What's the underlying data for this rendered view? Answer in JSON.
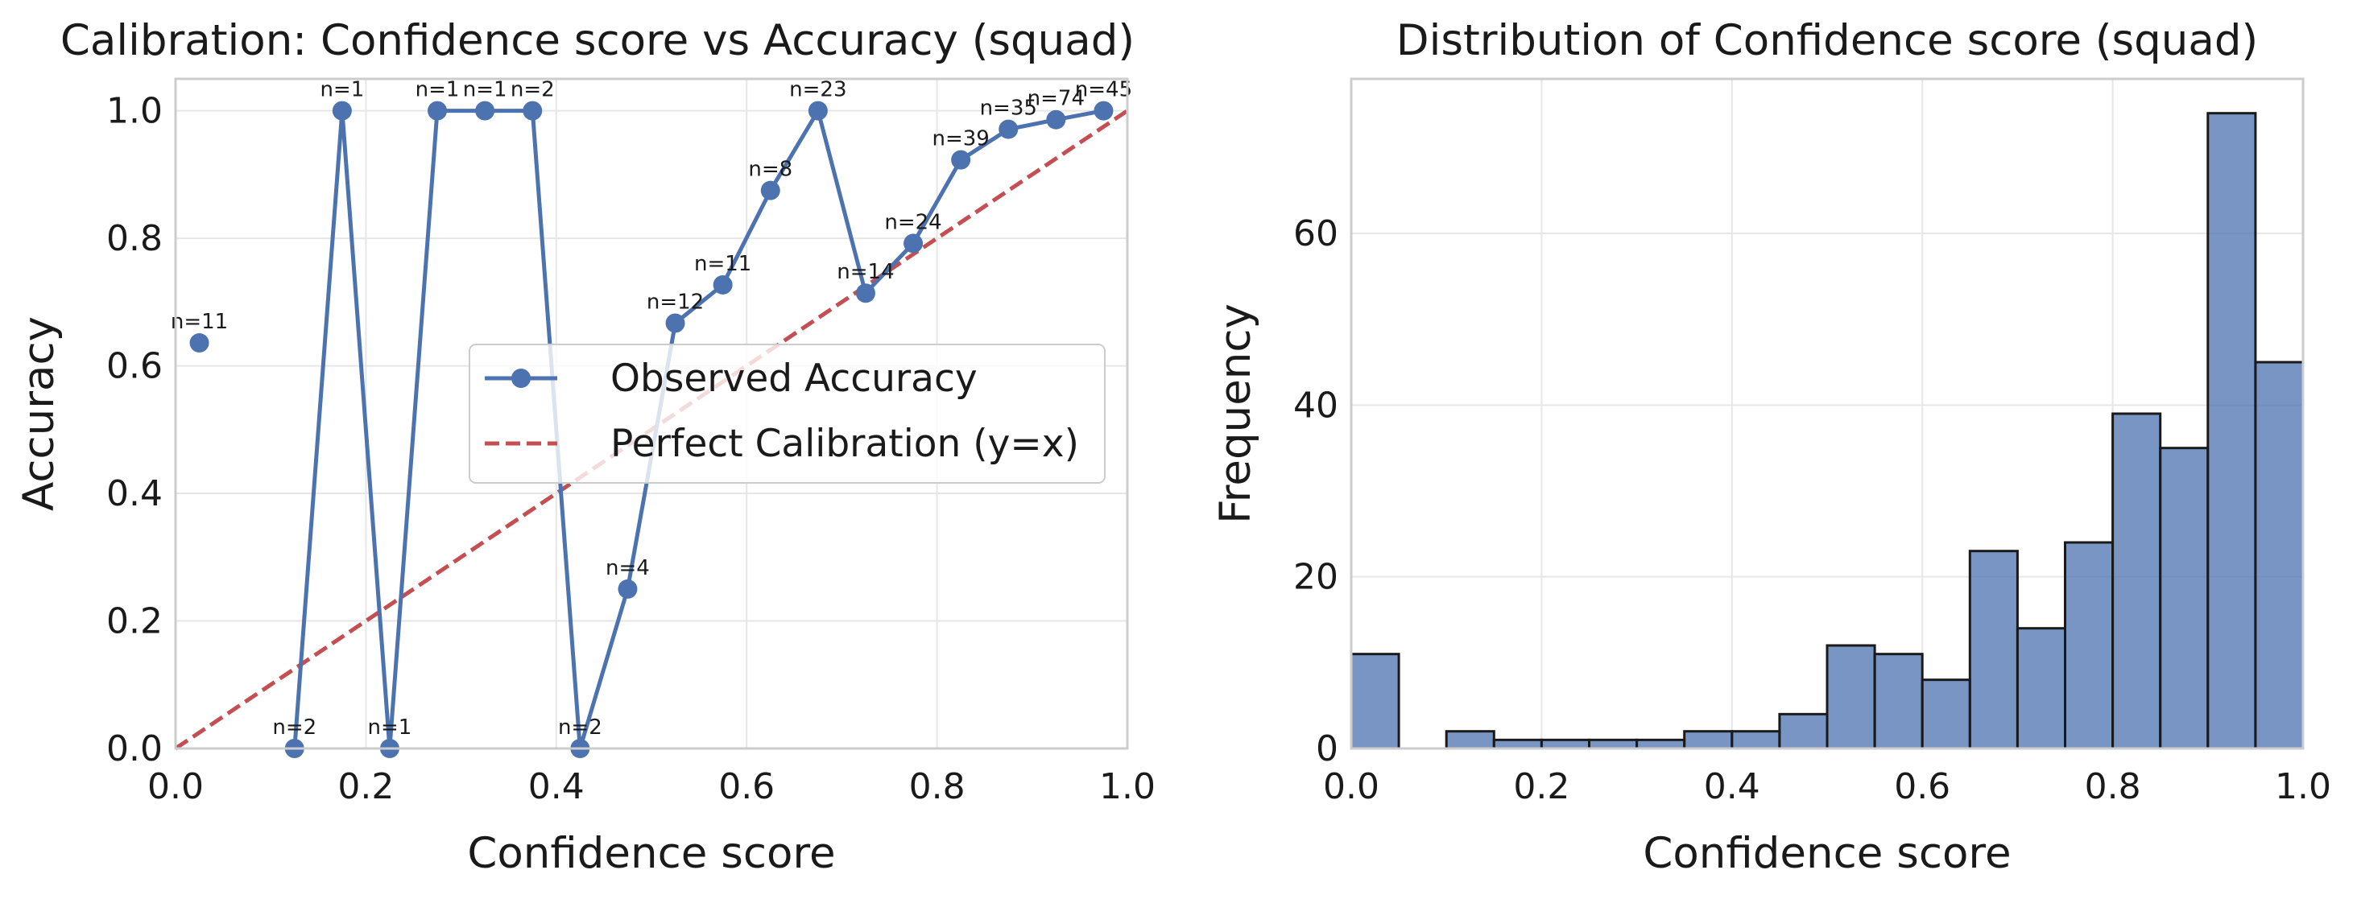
{
  "chart_data": [
    {
      "type": "line",
      "title": "Calibration: Confidence score vs Accuracy (squad)",
      "xlabel": "Confidence score",
      "ylabel": "Accuracy",
      "xlim": [
        0,
        1
      ],
      "ylim": [
        0,
        1.05
      ],
      "xticks": [
        0.0,
        0.2,
        0.4,
        0.6,
        0.8,
        1.0
      ],
      "xtick_labels": [
        "0.0",
        "0.2",
        "0.4",
        "0.6",
        "0.8",
        "1.0"
      ],
      "yticks": [
        0.0,
        0.2,
        0.4,
        0.6,
        0.8,
        1.0
      ],
      "ytick_labels": [
        "0.0",
        "0.2",
        "0.4",
        "0.6",
        "0.8",
        "1.0"
      ],
      "grid": true,
      "legend_position": "center-right",
      "series": [
        {
          "name": "Observed Accuracy",
          "color": "#4c72b0",
          "style": "solid-with-markers",
          "points": [
            {
              "x": 0.025,
              "y": 0.636,
              "label": "n=11"
            },
            {
              "x": 0.125,
              "y": 0.0,
              "label": "n=2"
            },
            {
              "x": 0.175,
              "y": 1.0,
              "label": "n=1"
            },
            {
              "x": 0.225,
              "y": 0.0,
              "label": "n=1"
            },
            {
              "x": 0.275,
              "y": 1.0,
              "label": "n=1"
            },
            {
              "x": 0.325,
              "y": 1.0,
              "label": "n=1"
            },
            {
              "x": 0.375,
              "y": 1.0,
              "label": "n=2"
            },
            {
              "x": 0.425,
              "y": 0.0,
              "label": "n=2"
            },
            {
              "x": 0.475,
              "y": 0.25,
              "label": "n=4"
            },
            {
              "x": 0.525,
              "y": 0.667,
              "label": "n=12"
            },
            {
              "x": 0.575,
              "y": 0.727,
              "label": "n=11"
            },
            {
              "x": 0.625,
              "y": 0.875,
              "label": "n=8"
            },
            {
              "x": 0.675,
              "y": 1.0,
              "label": "n=23"
            },
            {
              "x": 0.725,
              "y": 0.714,
              "label": "n=14"
            },
            {
              "x": 0.775,
              "y": 0.792,
              "label": "n=24"
            },
            {
              "x": 0.825,
              "y": 0.923,
              "label": "n=39"
            },
            {
              "x": 0.875,
              "y": 0.971,
              "label": "n=35"
            },
            {
              "x": 0.925,
              "y": 0.986,
              "label": "n=74"
            },
            {
              "x": 0.975,
              "y": 1.0,
              "label": "n=45"
            }
          ]
        },
        {
          "name": "Perfect Calibration (y=x)",
          "color": "#c44e52",
          "style": "dashed",
          "points": [
            {
              "x": 0,
              "y": 0
            },
            {
              "x": 1,
              "y": 1
            }
          ]
        }
      ]
    },
    {
      "type": "bar",
      "title": "Distribution of Confidence score (squad)",
      "xlabel": "Confidence score",
      "ylabel": "Frequency",
      "xlim": [
        0,
        1
      ],
      "ylim": [
        0,
        78
      ],
      "xticks": [
        0.0,
        0.2,
        0.4,
        0.6,
        0.8,
        1.0
      ],
      "xtick_labels": [
        "0.0",
        "0.2",
        "0.4",
        "0.6",
        "0.8",
        "1.0"
      ],
      "yticks": [
        0,
        20,
        40,
        60
      ],
      "ytick_labels": [
        "0",
        "20",
        "40",
        "60"
      ],
      "grid": true,
      "color": "#4c72b0",
      "bin_width": 0.05,
      "bins": [
        {
          "start": 0.0,
          "count": 11
        },
        {
          "start": 0.05,
          "count": 0
        },
        {
          "start": 0.1,
          "count": 2
        },
        {
          "start": 0.15,
          "count": 1
        },
        {
          "start": 0.2,
          "count": 1
        },
        {
          "start": 0.25,
          "count": 1
        },
        {
          "start": 0.3,
          "count": 1
        },
        {
          "start": 0.35,
          "count": 2
        },
        {
          "start": 0.4,
          "count": 2
        },
        {
          "start": 0.45,
          "count": 4
        },
        {
          "start": 0.5,
          "count": 12
        },
        {
          "start": 0.55,
          "count": 11
        },
        {
          "start": 0.6,
          "count": 8
        },
        {
          "start": 0.65,
          "count": 23
        },
        {
          "start": 0.7,
          "count": 14
        },
        {
          "start": 0.75,
          "count": 24
        },
        {
          "start": 0.8,
          "count": 39
        },
        {
          "start": 0.85,
          "count": 35
        },
        {
          "start": 0.9,
          "count": 74
        },
        {
          "start": 0.95,
          "count": 45
        }
      ]
    }
  ]
}
